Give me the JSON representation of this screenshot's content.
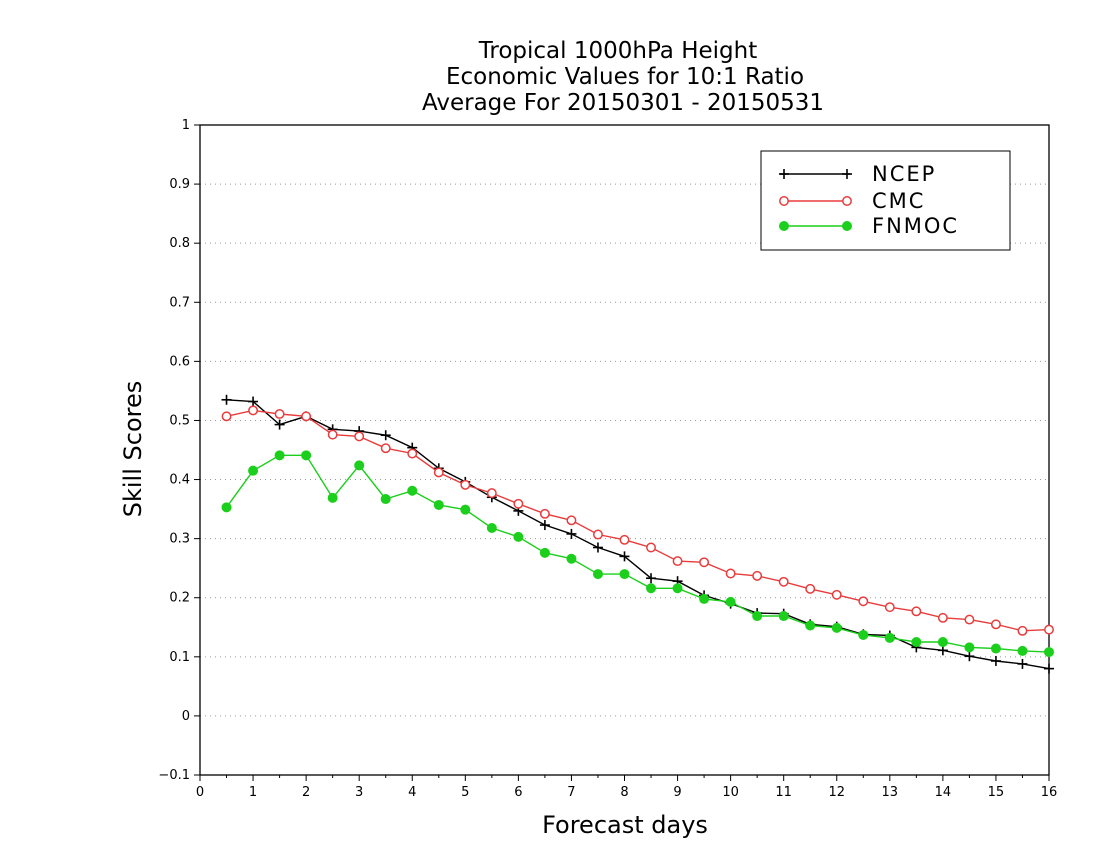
{
  "chart_data": {
    "type": "line",
    "title_lines": [
      "Tropical 1000hPa Height",
      "Economic Values for 10:1 Ratio",
      "Average For 20150301 - 20150531"
    ],
    "xlabel": "Forecast days",
    "ylabel": "Skill Scores",
    "xlim": [
      0,
      16
    ],
    "ylim": [
      -0.1,
      1
    ],
    "xticks": [
      "0",
      "1",
      "2",
      "3",
      "4",
      "5",
      "6",
      "7",
      "8",
      "9",
      "10",
      "11",
      "12",
      "13",
      "14",
      "15",
      "16"
    ],
    "yticks": [
      "−0.1",
      "0",
      "0.1",
      "0.2",
      "0.3",
      "0.4",
      "0.5",
      "0.6",
      "0.7",
      "0.8",
      "0.9",
      "1"
    ],
    "ytick_values": [
      -0.1,
      0,
      0.1,
      0.2,
      0.3,
      0.4,
      0.5,
      0.6,
      0.7,
      0.8,
      0.9,
      1
    ],
    "grid": "horizontal dotted",
    "legend_position": "top-right",
    "x": [
      0.5,
      1,
      1.5,
      2,
      2.5,
      3,
      3.5,
      4,
      4.5,
      5,
      5.5,
      6,
      6.5,
      7,
      7.5,
      8,
      8.5,
      9,
      9.5,
      10,
      10.5,
      11,
      11.5,
      12,
      12.5,
      13,
      13.5,
      14,
      14.5,
      15,
      15.5,
      16
    ],
    "series": [
      {
        "name": "NCEP",
        "color": "#000000",
        "marker": "plus",
        "values": [
          0.535,
          0.532,
          0.493,
          0.507,
          0.485,
          0.482,
          0.475,
          0.454,
          0.419,
          0.396,
          0.37,
          0.347,
          0.323,
          0.308,
          0.285,
          0.27,
          0.233,
          0.228,
          0.204,
          0.19,
          0.174,
          0.173,
          0.155,
          0.151,
          0.138,
          0.136,
          0.116,
          0.111,
          0.101,
          0.093,
          0.088,
          0.08
        ]
      },
      {
        "name": "CMC",
        "color": "#e83c3c",
        "marker": "open-circle",
        "values": [
          0.507,
          0.517,
          0.511,
          0.507,
          0.476,
          0.473,
          0.453,
          0.444,
          0.412,
          0.391,
          0.377,
          0.359,
          0.342,
          0.331,
          0.307,
          0.298,
          0.285,
          0.262,
          0.26,
          0.241,
          0.237,
          0.227,
          0.215,
          0.205,
          0.194,
          0.184,
          0.177,
          0.166,
          0.163,
          0.155,
          0.144,
          0.146
        ]
      },
      {
        "name": "FNMOC",
        "color": "#1ccf1c",
        "marker": "filled-circle",
        "values": [
          0.353,
          0.415,
          0.441,
          0.441,
          0.369,
          0.424,
          0.367,
          0.381,
          0.357,
          0.349,
          0.318,
          0.303,
          0.276,
          0.266,
          0.24,
          0.24,
          0.216,
          0.216,
          0.198,
          0.193,
          0.169,
          0.169,
          0.153,
          0.149,
          0.137,
          0.132,
          0.125,
          0.125,
          0.116,
          0.114,
          0.11,
          0.108
        ]
      }
    ]
  }
}
